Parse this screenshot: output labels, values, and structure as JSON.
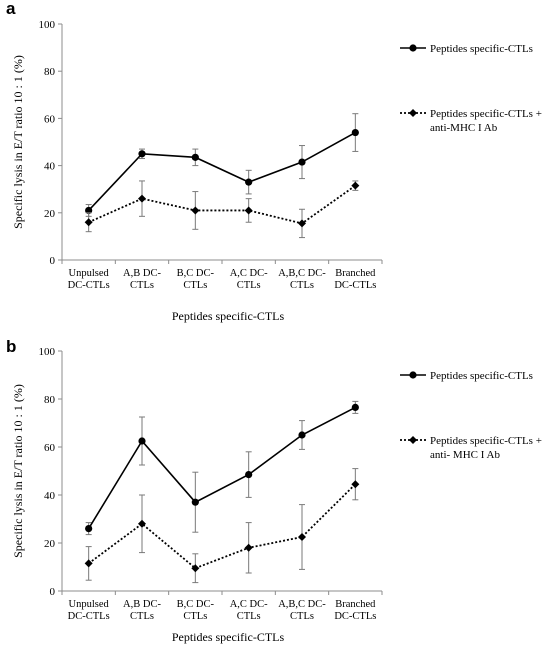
{
  "chart_data": [
    {
      "panel_label": "a",
      "type": "line",
      "categories": [
        [
          "Unpulsed",
          "DC-CTLs"
        ],
        [
          "A,B DC-",
          "CTLs"
        ],
        [
          "B,C DC-",
          "CTLs"
        ],
        [
          "A,C DC-",
          "CTLs"
        ],
        [
          "A,B,C DC-",
          "CTLs"
        ],
        [
          "Branched",
          "DC-CTLs"
        ]
      ],
      "ylabel": "Specific  lysis  in  E/T  ratio  10 : 1 (%)",
      "xlabel": "Peptides   specific-CTLs",
      "ylim": [
        0,
        100
      ],
      "yticks": [
        "0",
        "20",
        "40",
        "60",
        "80",
        "100"
      ],
      "legend_position": "top-right",
      "grid": false,
      "series": [
        {
          "name": [
            "Peptides specific-CTLs"
          ],
          "style": "solid",
          "marker": "circle",
          "values": [
            21,
            45,
            43.5,
            33,
            41.5,
            54
          ],
          "errors": [
            2.5,
            2,
            3.5,
            5,
            7,
            8
          ]
        },
        {
          "name": [
            "Peptides specific-CTLs +",
            "anti-MHC I Ab"
          ],
          "style": "dotted",
          "marker": "diamond",
          "values": [
            16,
            26,
            21,
            21,
            15.5,
            31.5
          ],
          "errors": [
            4,
            7.5,
            8,
            5,
            6,
            2
          ]
        }
      ]
    },
    {
      "panel_label": "b",
      "type": "line",
      "categories": [
        [
          "Unpulsed",
          "DC-CTLs"
        ],
        [
          "A,B DC-",
          "CTLs"
        ],
        [
          "B,C DC-",
          "CTLs"
        ],
        [
          "A,C DC-",
          "CTLs"
        ],
        [
          "A,B,C DC-",
          "CTLs"
        ],
        [
          "Branched",
          "DC-CTLs"
        ]
      ],
      "ylabel": "Specific  lysis  in  E/T  ratio  10 : 1 (%)",
      "xlabel": "Peptides specific-CTLs",
      "ylim": [
        0,
        100
      ],
      "yticks": [
        "0",
        "20",
        "40",
        "60",
        "80",
        "100"
      ],
      "legend_position": "top-right",
      "grid": false,
      "series": [
        {
          "name": [
            "Peptides specific-CTLs"
          ],
          "style": "solid",
          "marker": "circle",
          "values": [
            26,
            62.5,
            37,
            48.5,
            65,
            76.5
          ],
          "errors": [
            2.5,
            10,
            12.5,
            9.5,
            6,
            2.5
          ]
        },
        {
          "name": [
            "Peptides specific-CTLs +",
            "anti- MHC I Ab"
          ],
          "style": "dotted",
          "marker": "diamond",
          "values": [
            11.5,
            28,
            9.5,
            18,
            22.5,
            44.5
          ],
          "errors": [
            7,
            12,
            6,
            10.5,
            13.5,
            6.5
          ]
        }
      ]
    }
  ]
}
